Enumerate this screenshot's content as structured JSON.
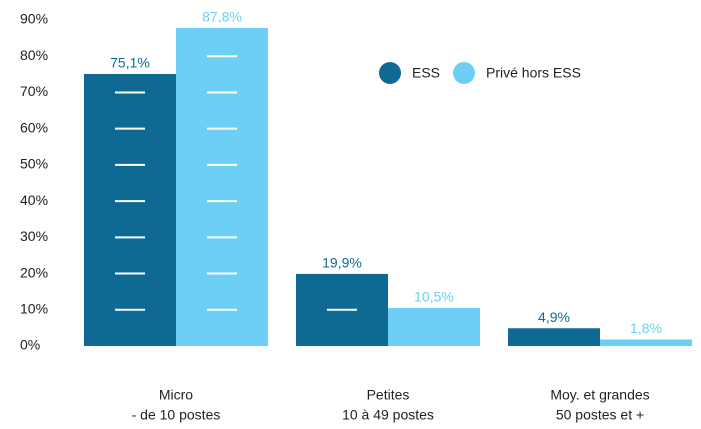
{
  "chart_data": {
    "type": "bar",
    "categories": [
      [
        "Micro",
        "- de 10 postes"
      ],
      [
        "Petites",
        "10 à 49 postes"
      ],
      [
        "Moy. et grandes",
        "50 postes et +"
      ]
    ],
    "series": [
      {
        "name": "ESS",
        "color": "#0f6a93",
        "values": [
          75.1,
          19.9,
          4.9
        ],
        "value_labels": [
          "75,1%",
          "19,9%",
          "4,9%"
        ]
      },
      {
        "name": "Privé hors ESS",
        "color": "#6dcff6",
        "values": [
          87.8,
          10.5,
          1.8
        ],
        "value_labels": [
          "87,8%",
          "10,5%",
          "1,8%"
        ]
      }
    ],
    "ylim": [
      0,
      90
    ],
    "yticks": [
      {
        "value": 0,
        "label": "0%"
      },
      {
        "value": 10,
        "label": "10%"
      },
      {
        "value": 20,
        "label": "20%"
      },
      {
        "value": 30,
        "label": "30%"
      },
      {
        "value": 40,
        "label": "40%"
      },
      {
        "value": 50,
        "label": "50%"
      },
      {
        "value": 60,
        "label": "60%"
      },
      {
        "value": 70,
        "label": "70%"
      },
      {
        "value": 80,
        "label": "80%"
      },
      {
        "value": 90,
        "label": "90%"
      }
    ],
    "grid": true,
    "legend": "top-right"
  }
}
